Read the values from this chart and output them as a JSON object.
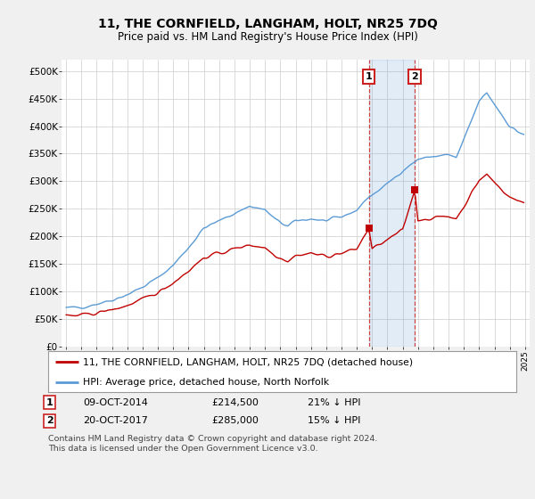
{
  "title": "11, THE CORNFIELD, LANGHAM, HOLT, NR25 7DQ",
  "subtitle": "Price paid vs. HM Land Registry's House Price Index (HPI)",
  "yticks": [
    0,
    50000,
    100000,
    150000,
    200000,
    250000,
    300000,
    350000,
    400000,
    450000,
    500000
  ],
  "ytick_labels": [
    "£0",
    "£50K",
    "£100K",
    "£150K",
    "£200K",
    "£250K",
    "£300K",
    "£350K",
    "£400K",
    "£450K",
    "£500K"
  ],
  "ylim": [
    0,
    520000
  ],
  "hpi_color": "#5b9bd5",
  "price_color": "#c00000",
  "sale1_year": 2014.79,
  "sale1_price": 214500,
  "sale2_year": 2017.79,
  "sale2_price": 285000,
  "legend_price": "11, THE CORNFIELD, LANGHAM, HOLT, NR25 7DQ (detached house)",
  "legend_hpi": "HPI: Average price, detached house, North Norfolk",
  "footer": "Contains HM Land Registry data © Crown copyright and database right 2024.\nThis data is licensed under the Open Government Licence v3.0.",
  "background_color": "#f0f0f0",
  "plot_bg": "#ffffff",
  "start_year": 1995,
  "end_year": 2025
}
